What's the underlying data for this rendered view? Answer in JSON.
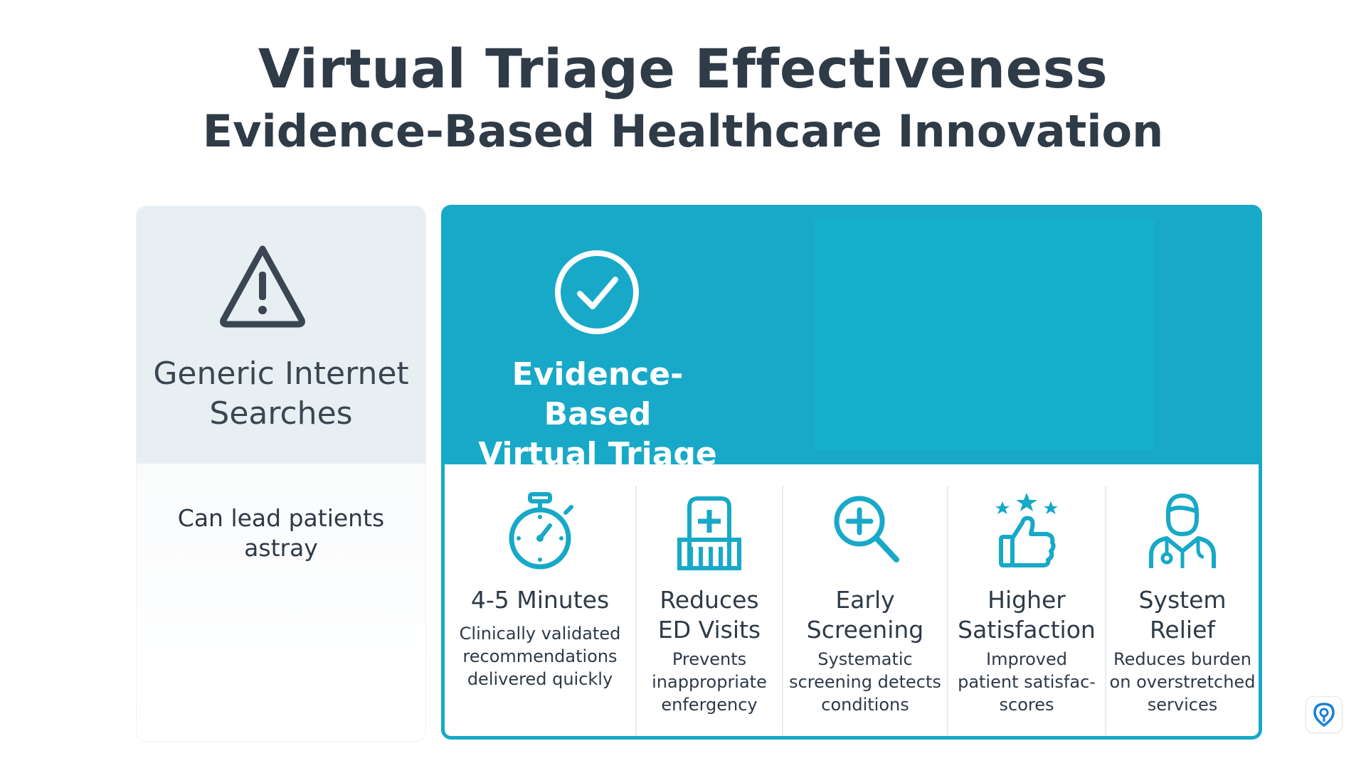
{
  "header": {
    "title": "Virtual Triage Effectiveness",
    "subtitle": "Evidence-Based Healthcare Innovation"
  },
  "left_card": {
    "icon": "warning-triangle-icon",
    "title_line1": "Generic Internet",
    "title_line2": "Searches",
    "body_line1": "Can lead patients",
    "body_line2": "astray"
  },
  "right_card": {
    "icon": "check-circle-icon",
    "title_line1": "Evidence-Based",
    "title_line2": "Virtual Triage",
    "features": [
      {
        "icon": "stopwatch-icon",
        "title": [
          "4-5 Minutes"
        ],
        "desc": [
          "Clinically validated",
          "recommendations",
          "delivered quickly"
        ]
      },
      {
        "icon": "hospital-icon",
        "title": [
          "Reduces",
          "ED Visits"
        ],
        "desc": [
          "Prevents",
          "inappropriate",
          "enfergency"
        ]
      },
      {
        "icon": "magnifier-plus-icon",
        "title": [
          "Early",
          "Screening"
        ],
        "desc": [
          "Systematic",
          "screening detects",
          "conditions"
        ]
      },
      {
        "icon": "thumbs-up-stars-icon",
        "title": [
          "Higher",
          "Satisfaction"
        ],
        "desc": [
          "Improved",
          "patient satisfac-",
          "scores"
        ]
      },
      {
        "icon": "doctor-icon",
        "title": [
          "System",
          "Relief"
        ],
        "desc": [
          "Reduces burden",
          "on overstretched",
          "services"
        ]
      }
    ]
  },
  "colors": {
    "accent": "#17a9c7",
    "text": "#2e3a46",
    "left_header_bg": "#e8eff3"
  },
  "badge_icon": "location-pin-icon"
}
